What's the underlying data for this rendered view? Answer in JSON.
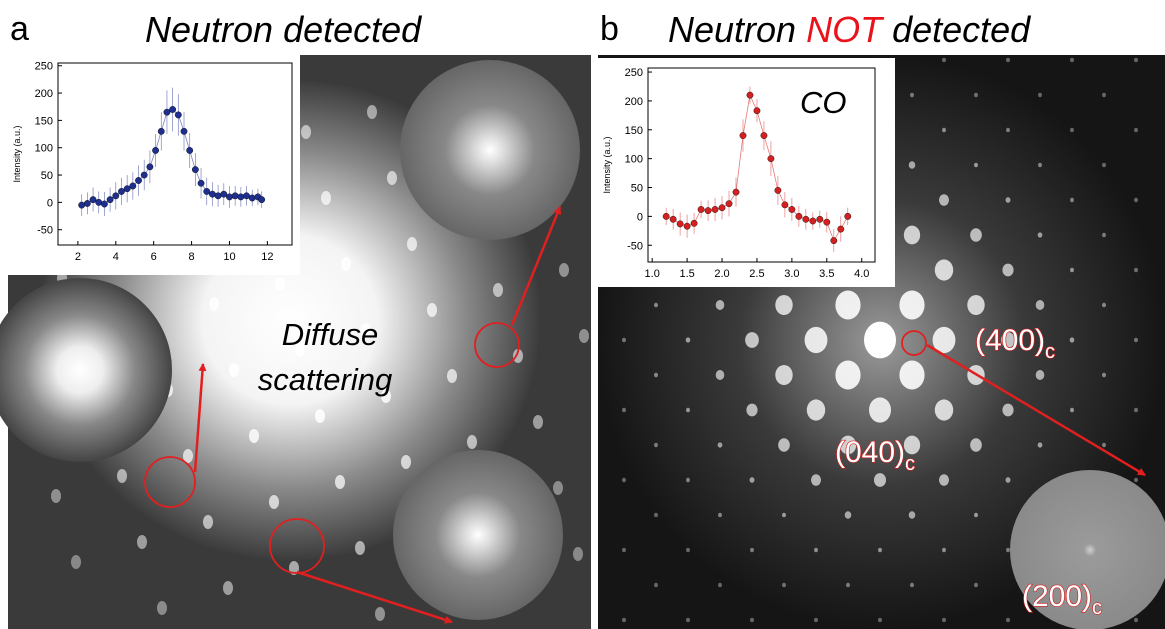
{
  "panels": [
    {
      "label": "a",
      "title": [
        {
          "text": "Neutron detected"
        }
      ]
    },
    {
      "label": "b",
      "title": [
        {
          "text": "Neutron "
        },
        {
          "text": "NOT",
          "color": "#e8131b"
        },
        {
          "text": " detected"
        }
      ]
    }
  ],
  "annotations": {
    "diffuse": [
      "Diffuse",
      "scattering"
    ],
    "reflections": [
      {
        "main": "(400)",
        "sub": "c"
      },
      {
        "main": "(040)",
        "sub": "c"
      },
      {
        "main": "(200)",
        "sub": "c"
      }
    ]
  },
  "chart_data": [
    {
      "type": "scatter",
      "y_label": "Intensity (a.u.)",
      "color": "#1f2f8f",
      "x": [
        2.2,
        2.5,
        2.8,
        3.1,
        3.4,
        3.7,
        4.0,
        4.3,
        4.6,
        4.9,
        5.2,
        5.5,
        5.8,
        6.1,
        6.4,
        6.7,
        7.0,
        7.3,
        7.6,
        7.9,
        8.2,
        8.5,
        8.8,
        9.1,
        9.4,
        9.7,
        10.0,
        10.3,
        10.6,
        10.9,
        11.2,
        11.5,
        11.7
      ],
      "values": [
        -5,
        -2,
        5,
        0,
        -3,
        5,
        12,
        20,
        25,
        30,
        40,
        50,
        65,
        95,
        130,
        165,
        170,
        160,
        130,
        95,
        60,
        35,
        20,
        15,
        12,
        15,
        10,
        12,
        10,
        12,
        8,
        10,
        5
      ],
      "errors": [
        20,
        20,
        22,
        20,
        22,
        22,
        25,
        25,
        25,
        25,
        28,
        28,
        30,
        30,
        35,
        40,
        40,
        38,
        35,
        32,
        30,
        28,
        25,
        22,
        20,
        20,
        20,
        18,
        18,
        18,
        15,
        15,
        15
      ],
      "xlim": [
        0.95,
        13.3
      ],
      "xticks": [
        2,
        4,
        6,
        8,
        10,
        12
      ],
      "ylim": [
        -78,
        255
      ],
      "yticks": [
        -50,
        0,
        50,
        100,
        150,
        200,
        250
      ]
    },
    {
      "type": "scatter",
      "y_label": "Intensity (a.u.)",
      "annotation": "CO",
      "color": "#d42020",
      "x": [
        1.2,
        1.3,
        1.4,
        1.5,
        1.6,
        1.7,
        1.8,
        1.9,
        2.0,
        2.1,
        2.2,
        2.3,
        2.4,
        2.5,
        2.6,
        2.7,
        2.8,
        2.9,
        3.0,
        3.1,
        3.2,
        3.3,
        3.4,
        3.5,
        3.6,
        3.7,
        3.8
      ],
      "values": [
        0,
        -5,
        -13,
        -17,
        -12,
        12,
        10,
        12,
        15,
        22,
        42,
        140,
        210,
        183,
        140,
        100,
        45,
        20,
        12,
        0,
        -5,
        -8,
        -5,
        -10,
        -42,
        -22,
        0
      ],
      "errors": [
        15,
        18,
        20,
        20,
        18,
        15,
        18,
        20,
        20,
        22,
        25,
        28,
        15,
        20,
        25,
        30,
        25,
        22,
        20,
        18,
        18,
        15,
        15,
        18,
        20,
        22,
        15
      ],
      "xlim": [
        0.94,
        4.19
      ],
      "xticks": [
        {
          "value": 1,
          "label": "1.0"
        },
        {
          "value": 1.5,
          "label": "1.5"
        },
        {
          "value": 2,
          "label": "2.0"
        },
        {
          "value": 2.5,
          "label": "2.5"
        },
        {
          "value": 3,
          "label": "3.0"
        },
        {
          "value": 3.5,
          "label": "3.5"
        },
        {
          "value": 4,
          "label": "4.0"
        }
      ],
      "ylim": [
        -79,
        257
      ],
      "yticks": [
        -50,
        0,
        50,
        100,
        150,
        200,
        250
      ]
    }
  ]
}
